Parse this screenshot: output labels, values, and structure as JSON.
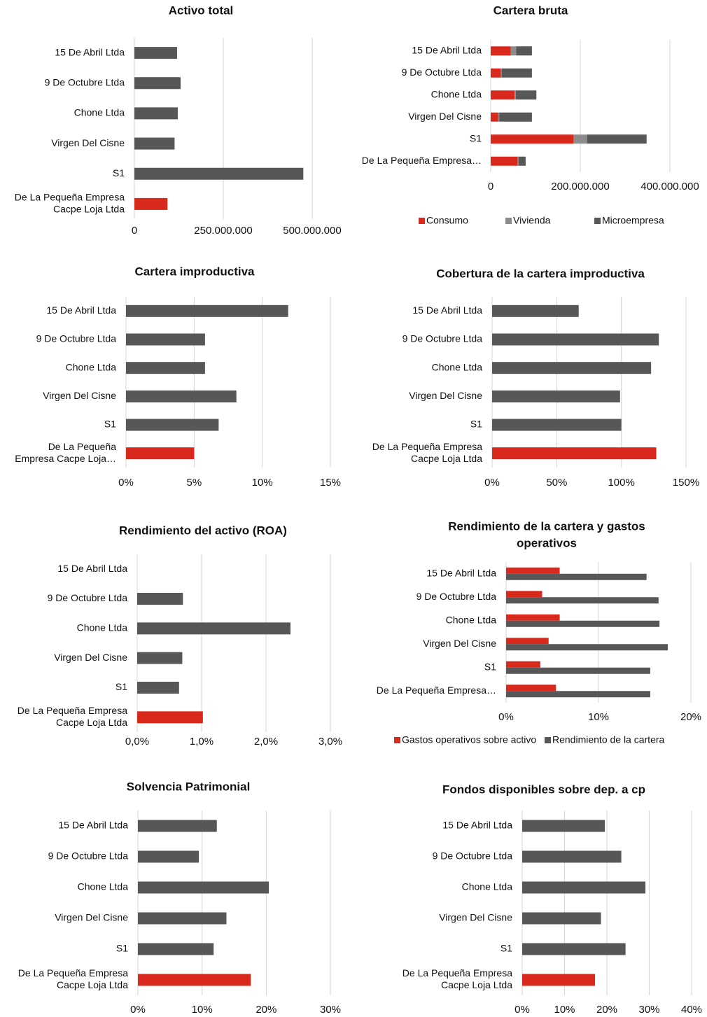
{
  "colors": {
    "highlight": "#d9281c",
    "dark": "#575757",
    "mid": "#8c8c8c",
    "grid": "#d4d4d4"
  },
  "chart_data": [
    {
      "type": "bar",
      "title": "Activo total",
      "categories": [
        "15 De Abril Ltda",
        "9 De Octubre Ltda",
        "Chone Ltda",
        "Virgen Del Cisne",
        "S1",
        "De La Pequeña Empresa Cacpe Loja Ltda"
      ],
      "category_lines": [
        [
          "15 De Abril Ltda"
        ],
        [
          "9 De Octubre Ltda"
        ],
        [
          "Chone Ltda"
        ],
        [
          "Virgen Del Cisne"
        ],
        [
          "S1"
        ],
        [
          "De La Pequeña Empresa",
          "Cacpe Loja Ltda"
        ]
      ],
      "values": [
        120000000,
        130000000,
        122000000,
        113000000,
        475000000,
        93000000
      ],
      "highlight_index": 5,
      "xlim": [
        0,
        500000000
      ],
      "xticks": [
        0,
        250000000,
        500000000
      ],
      "xtick_labels": [
        "0",
        "250.000.000",
        "500.000.000"
      ],
      "grid": true
    },
    {
      "type": "bar",
      "stacked": true,
      "title": "Cartera bruta",
      "categories": [
        "15 De Abril Ltda",
        "9 De Octubre Ltda",
        "Chone Ltda",
        "Virgen Del Cisne",
        "S1",
        "De La Pequeña Empresa Cacpe Loja Ltda"
      ],
      "category_lines": [
        [
          "15 De Abril Ltda"
        ],
        [
          "9 De Octubre Ltda"
        ],
        [
          "Chone Ltda"
        ],
        [
          "Virgen Del Cisne"
        ],
        [
          "S1"
        ],
        [
          "De La Pequeña Empresa…"
        ]
      ],
      "series": [
        {
          "name": "Consumo",
          "color": "#d9281c",
          "values": [
            45000000,
            23000000,
            53000000,
            17000000,
            185000000,
            60000000
          ]
        },
        {
          "name": "Vivienda",
          "color": "#8c8c8c",
          "values": [
            12000000,
            2000000,
            3000000,
            2000000,
            30000000,
            2000000
          ]
        },
        {
          "name": "Microempresa",
          "color": "#575757",
          "values": [
            35000000,
            67000000,
            46000000,
            73000000,
            133000000,
            16000000
          ]
        }
      ],
      "xlim": [
        0,
        400000000
      ],
      "xticks": [
        0,
        200000000,
        400000000
      ],
      "xtick_labels": [
        "0",
        "200.000.000",
        "400.000.000"
      ],
      "grid": true,
      "legend": "bottom"
    },
    {
      "type": "bar",
      "title": "Cartera improductiva",
      "categories": [
        "15 De Abril Ltda",
        "9 De Octubre Ltda",
        "Chone Ltda",
        "Virgen Del Cisne",
        "S1",
        "De La Pequeña Empresa Cacpe Loja Ltda"
      ],
      "category_lines": [
        [
          "15 De Abril Ltda"
        ],
        [
          "9 De Octubre Ltda"
        ],
        [
          "Chone Ltda"
        ],
        [
          "Virgen Del Cisne"
        ],
        [
          "S1"
        ],
        [
          "De La Pequeña",
          "Empresa Cacpe Loja…"
        ]
      ],
      "values": [
        11.9,
        5.8,
        5.8,
        8.1,
        6.8,
        5.0
      ],
      "highlight_index": 5,
      "xlim": [
        0,
        15
      ],
      "xticks": [
        0,
        5,
        10,
        15
      ],
      "xtick_labels": [
        "0%",
        "5%",
        "10%",
        "15%"
      ],
      "grid": true
    },
    {
      "type": "bar",
      "title": "Cobertura de la cartera improductiva",
      "categories": [
        "15 De Abril Ltda",
        "9 De Octubre Ltda",
        "Chone Ltda",
        "Virgen Del Cisne",
        "S1",
        "De La Pequeña Empresa Cacpe Loja Ltda"
      ],
      "category_lines": [
        [
          "15 De Abril Ltda"
        ],
        [
          "9 De Octubre Ltda"
        ],
        [
          "Chone Ltda"
        ],
        [
          "Virgen Del Cisne"
        ],
        [
          "S1"
        ],
        [
          "De La Pequeña Empresa",
          "Cacpe Loja Ltda"
        ]
      ],
      "values": [
        67,
        129,
        123,
        99,
        100,
        127
      ],
      "highlight_index": 5,
      "xlim": [
        0,
        150
      ],
      "xticks": [
        0,
        50,
        100,
        150
      ],
      "xtick_labels": [
        "0%",
        "50%",
        "100%",
        "150%"
      ],
      "grid": true
    },
    {
      "type": "bar",
      "title": "Rendimiento del activo (ROA)",
      "categories": [
        "15 De Abril Ltda",
        "9 De Octubre Ltda",
        "Chone Ltda",
        "Virgen Del Cisne",
        "S1",
        "De La Pequeña Empresa Cacpe Loja Ltda"
      ],
      "category_lines": [
        [
          "15 De Abril Ltda"
        ],
        [
          "9 De Octubre Ltda"
        ],
        [
          "Chone Ltda"
        ],
        [
          "Virgen Del Cisne"
        ],
        [
          "S1"
        ],
        [
          "De La Pequeña Empresa",
          "Cacpe Loja Ltda"
        ]
      ],
      "values": [
        0,
        0.71,
        2.38,
        0.7,
        0.65,
        1.02
      ],
      "highlight_index": 5,
      "xlim": [
        0,
        3
      ],
      "xticks": [
        0,
        1,
        2,
        3
      ],
      "xtick_labels": [
        "0,0%",
        "1,0%",
        "2,0%",
        "3,0%"
      ],
      "grid": true
    },
    {
      "type": "bar",
      "grouped": true,
      "title": "Rendimiento de la cartera y gastos operativos",
      "title_lines": [
        "Rendimiento de la cartera y gastos",
        "operativos"
      ],
      "categories": [
        "15 De Abril Ltda",
        "9 De Octubre Ltda",
        "Chone Ltda",
        "Virgen Del Cisne",
        "S1",
        "De La Pequeña Empresa Cacpe Loja Ltda"
      ],
      "category_lines": [
        [
          "15 De Abril Ltda"
        ],
        [
          "9 De Octubre Ltda"
        ],
        [
          "Chone Ltda"
        ],
        [
          "Virgen Del Cisne"
        ],
        [
          "S1"
        ],
        [
          "De La Pequeña Empresa…"
        ]
      ],
      "series": [
        {
          "name": "Gastos operativos sobre activo",
          "color": "#d9281c",
          "values": [
            5.8,
            3.9,
            5.8,
            4.6,
            3.7,
            5.4
          ]
        },
        {
          "name": "Rendimiento de la cartera",
          "color": "#575757",
          "values": [
            15.2,
            16.5,
            16.6,
            17.5,
            15.6,
            15.6
          ]
        }
      ],
      "xlim": [
        0,
        20
      ],
      "xticks": [
        0,
        10,
        20
      ],
      "xtick_labels": [
        "0%",
        "10%",
        "20%"
      ],
      "grid": true,
      "legend": "bottom"
    },
    {
      "type": "bar",
      "title": "Solvencia Patrimonial",
      "categories": [
        "15 De Abril Ltda",
        "9 De Octubre Ltda",
        "Chone Ltda",
        "Virgen Del Cisne",
        "S1",
        "De La Pequeña Empresa Cacpe Loja Ltda"
      ],
      "category_lines": [
        [
          "15 De Abril Ltda"
        ],
        [
          "9 De Octubre Ltda"
        ],
        [
          "Chone Ltda"
        ],
        [
          "Virgen Del Cisne"
        ],
        [
          "S1"
        ],
        [
          "De La Pequeña Empresa",
          "Cacpe Loja Ltda"
        ]
      ],
      "values": [
        12.3,
        9.5,
        20.4,
        13.8,
        11.8,
        17.6
      ],
      "highlight_index": 5,
      "xlim": [
        0,
        30
      ],
      "xticks": [
        0,
        10,
        20,
        30
      ],
      "xtick_labels": [
        "0%",
        "10%",
        "20%",
        "30%"
      ],
      "grid": true
    },
    {
      "type": "bar",
      "title": "Fondos disponibles sobre dep. a cp",
      "categories": [
        "15 De Abril Ltda",
        "9 De Octubre Ltda",
        "Chone Ltda",
        "Virgen Del Cisne",
        "S1",
        "De La Pequeña Empresa Cacpe Loja Ltda"
      ],
      "category_lines": [
        [
          "15 De Abril Ltda"
        ],
        [
          "9 De Octubre Ltda"
        ],
        [
          "Chone Ltda"
        ],
        [
          "Virgen Del Cisne"
        ],
        [
          "S1"
        ],
        [
          "De La Pequeña Empresa",
          "Cacpe Loja Ltda"
        ]
      ],
      "values": [
        19.5,
        23.4,
        29.1,
        18.6,
        24.4,
        17.2
      ],
      "highlight_index": 5,
      "xlim": [
        0,
        40
      ],
      "xticks": [
        0,
        10,
        20,
        30,
        40
      ],
      "xtick_labels": [
        "0%",
        "10%",
        "20%",
        "30%",
        "40%"
      ],
      "grid": true
    }
  ]
}
